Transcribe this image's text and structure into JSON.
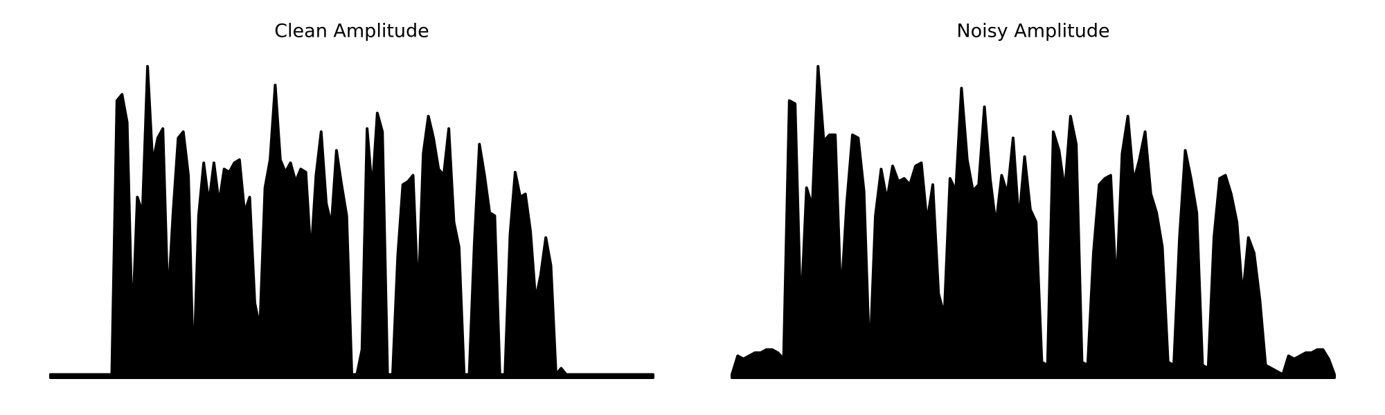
{
  "chart_data": [
    {
      "type": "area",
      "title": "Clean Amplitude",
      "color": "#000000",
      "ylim": [
        0,
        1
      ],
      "values": [
        0.01,
        0.01,
        0.01,
        0.01,
        0.01,
        0.01,
        0.01,
        0.01,
        0.01,
        0.01,
        0.01,
        0.01,
        0.01,
        0.89,
        0.91,
        0.82,
        0.16,
        0.58,
        0.53,
        1.0,
        0.69,
        0.77,
        0.8,
        0.24,
        0.53,
        0.77,
        0.79,
        0.65,
        0.01,
        0.52,
        0.69,
        0.56,
        0.69,
        0.56,
        0.67,
        0.66,
        0.69,
        0.7,
        0.53,
        0.58,
        0.24,
        0.16,
        0.61,
        0.7,
        0.94,
        0.7,
        0.66,
        0.69,
        0.63,
        0.67,
        0.66,
        0.39,
        0.65,
        0.79,
        0.56,
        0.49,
        0.73,
        0.62,
        0.52,
        0.01,
        0.01,
        0.09,
        0.8,
        0.6,
        0.85,
        0.79,
        0.01,
        0.01,
        0.39,
        0.62,
        0.63,
        0.65,
        0.25,
        0.72,
        0.84,
        0.77,
        0.67,
        0.65,
        0.8,
        0.5,
        0.42,
        0.01,
        0.01,
        0.43,
        0.75,
        0.65,
        0.53,
        0.52,
        0.01,
        0.01,
        0.46,
        0.66,
        0.58,
        0.59,
        0.47,
        0.25,
        0.33,
        0.45,
        0.36,
        0.01,
        0.03,
        0.01,
        0.01,
        0.01,
        0.01,
        0.01,
        0.01,
        0.01,
        0.01,
        0.01,
        0.01,
        0.01,
        0.01,
        0.01,
        0.01,
        0.01,
        0.01,
        0.01,
        0.01
      ]
    },
    {
      "type": "area",
      "title": "Noisy Amplitude",
      "color": "#000000",
      "ylim": [
        0,
        1
      ],
      "values": [
        0.01,
        0.07,
        0.06,
        0.07,
        0.08,
        0.08,
        0.09,
        0.09,
        0.08,
        0.06,
        0.89,
        0.88,
        0.2,
        0.61,
        0.55,
        1.0,
        0.76,
        0.78,
        0.78,
        0.25,
        0.56,
        0.78,
        0.77,
        0.6,
        0.05,
        0.52,
        0.67,
        0.57,
        0.68,
        0.63,
        0.64,
        0.62,
        0.68,
        0.69,
        0.5,
        0.62,
        0.27,
        0.2,
        0.64,
        0.6,
        0.93,
        0.7,
        0.6,
        0.62,
        0.87,
        0.64,
        0.49,
        0.65,
        0.59,
        0.77,
        0.5,
        0.71,
        0.54,
        0.5,
        0.05,
        0.04,
        0.79,
        0.73,
        0.6,
        0.84,
        0.75,
        0.05,
        0.04,
        0.4,
        0.62,
        0.64,
        0.65,
        0.28,
        0.72,
        0.84,
        0.63,
        0.7,
        0.79,
        0.59,
        0.53,
        0.42,
        0.05,
        0.04,
        0.45,
        0.73,
        0.64,
        0.53,
        0.04,
        0.03,
        0.45,
        0.64,
        0.65,
        0.59,
        0.5,
        0.26,
        0.45,
        0.4,
        0.25,
        0.04,
        0.03,
        0.02,
        0.01,
        0.07,
        0.06,
        0.07,
        0.08,
        0.08,
        0.09,
        0.09,
        0.06,
        0.01
      ]
    }
  ]
}
